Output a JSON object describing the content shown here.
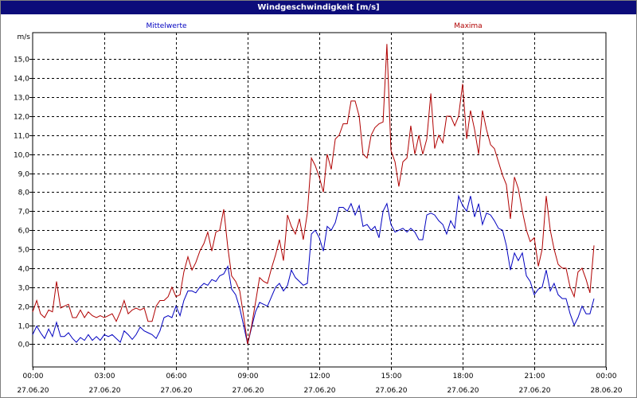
{
  "window": {
    "title": "Windgeschwindigkeit [m/s]"
  },
  "chart_data": {
    "type": "line",
    "title": "Windgeschwindigkeit [m/s]",
    "ylabel": "m/s",
    "xlabel": "",
    "ylim": [
      -1.2,
      16.4
    ],
    "xlim": [
      0,
      24
    ],
    "grid": true,
    "legend": "top",
    "y_ticks": [
      "0,0",
      "1,0",
      "2,0",
      "3,0",
      "4,0",
      "5,0",
      "6,0",
      "7,0",
      "8,0",
      "9,0",
      "10,0",
      "11,0",
      "12,0",
      "13,0",
      "14,0",
      "15,0"
    ],
    "x_ticks": [
      {
        "time": "00:00",
        "date": "27.06.20"
      },
      {
        "time": "03:00",
        "date": "27.06.20"
      },
      {
        "time": "06:00",
        "date": "27.06.20"
      },
      {
        "time": "09:00",
        "date": "27.06.20"
      },
      {
        "time": "12:00",
        "date": "27.06.20"
      },
      {
        "time": "15:00",
        "date": "27.06.20"
      },
      {
        "time": "18:00",
        "date": "27.06.20"
      },
      {
        "time": "21:00",
        "date": "27.06.20"
      },
      {
        "time": "00:00",
        "date": "28.06.20"
      }
    ],
    "series": [
      {
        "name": "Mittelwerte",
        "color": "#0000c0",
        "points": [
          [
            0.0,
            0.5
          ],
          [
            0.17,
            0.95
          ],
          [
            0.33,
            0.6
          ],
          [
            0.5,
            0.3
          ],
          [
            0.67,
            0.8
          ],
          [
            0.83,
            0.4
          ],
          [
            1.0,
            1.15
          ],
          [
            1.17,
            0.4
          ],
          [
            1.33,
            0.4
          ],
          [
            1.5,
            0.6
          ],
          [
            1.67,
            0.3
          ],
          [
            1.83,
            0.1
          ],
          [
            2.0,
            0.35
          ],
          [
            2.17,
            0.2
          ],
          [
            2.33,
            0.5
          ],
          [
            2.5,
            0.2
          ],
          [
            2.67,
            0.4
          ],
          [
            2.83,
            0.2
          ],
          [
            3.0,
            0.5
          ],
          [
            3.17,
            0.4
          ],
          [
            3.33,
            0.5
          ],
          [
            3.5,
            0.3
          ],
          [
            3.67,
            0.1
          ],
          [
            3.83,
            0.7
          ],
          [
            4.0,
            0.5
          ],
          [
            4.17,
            0.25
          ],
          [
            4.33,
            0.5
          ],
          [
            4.5,
            0.9
          ],
          [
            4.67,
            0.7
          ],
          [
            4.83,
            0.6
          ],
          [
            5.0,
            0.5
          ],
          [
            5.17,
            0.3
          ],
          [
            5.33,
            0.7
          ],
          [
            5.5,
            1.4
          ],
          [
            5.67,
            1.5
          ],
          [
            5.83,
            1.4
          ],
          [
            6.0,
            2.0
          ],
          [
            6.17,
            1.5
          ],
          [
            6.33,
            2.3
          ],
          [
            6.5,
            2.8
          ],
          [
            6.67,
            2.8
          ],
          [
            6.83,
            2.7
          ],
          [
            7.0,
            3.0
          ],
          [
            7.17,
            3.2
          ],
          [
            7.33,
            3.1
          ],
          [
            7.5,
            3.4
          ],
          [
            7.67,
            3.3
          ],
          [
            7.83,
            3.6
          ],
          [
            8.0,
            3.7
          ],
          [
            8.17,
            4.1
          ],
          [
            8.33,
            2.9
          ],
          [
            8.5,
            2.6
          ],
          [
            8.67,
            1.9
          ],
          [
            8.83,
            1.0
          ],
          [
            9.0,
            0.0
          ],
          [
            9.17,
            0.9
          ],
          [
            9.33,
            1.7
          ],
          [
            9.5,
            2.2
          ],
          [
            9.67,
            2.1
          ],
          [
            9.83,
            2.0
          ],
          [
            10.0,
            2.5
          ],
          [
            10.17,
            3.0
          ],
          [
            10.33,
            3.2
          ],
          [
            10.5,
            2.8
          ],
          [
            10.67,
            3.1
          ],
          [
            10.83,
            3.9
          ],
          [
            11.0,
            3.5
          ],
          [
            11.17,
            3.3
          ],
          [
            11.33,
            3.1
          ],
          [
            11.5,
            3.2
          ],
          [
            11.67,
            5.8
          ],
          [
            11.83,
            6.0
          ],
          [
            12.0,
            5.6
          ],
          [
            12.17,
            4.9
          ],
          [
            12.33,
            6.2
          ],
          [
            12.5,
            6.0
          ],
          [
            12.67,
            6.4
          ],
          [
            12.83,
            7.2
          ],
          [
            13.0,
            7.2
          ],
          [
            13.17,
            7.0
          ],
          [
            13.33,
            7.4
          ],
          [
            13.5,
            6.8
          ],
          [
            13.67,
            7.3
          ],
          [
            13.83,
            6.2
          ],
          [
            14.0,
            6.3
          ],
          [
            14.17,
            6.0
          ],
          [
            14.33,
            6.2
          ],
          [
            14.5,
            5.6
          ],
          [
            14.67,
            7.0
          ],
          [
            14.83,
            7.4
          ],
          [
            15.0,
            6.3
          ],
          [
            15.17,
            5.9
          ],
          [
            15.33,
            6.0
          ],
          [
            15.5,
            6.1
          ],
          [
            15.67,
            5.9
          ],
          [
            15.83,
            6.1
          ],
          [
            16.0,
            5.9
          ],
          [
            16.17,
            5.5
          ],
          [
            16.33,
            5.5
          ],
          [
            16.5,
            6.8
          ],
          [
            16.67,
            6.9
          ],
          [
            16.83,
            6.8
          ],
          [
            17.0,
            6.5
          ],
          [
            17.17,
            6.3
          ],
          [
            17.33,
            5.8
          ],
          [
            17.5,
            6.5
          ],
          [
            17.67,
            6.1
          ],
          [
            17.83,
            7.8
          ],
          [
            18.0,
            7.3
          ],
          [
            18.17,
            7.0
          ],
          [
            18.33,
            7.8
          ],
          [
            18.5,
            6.7
          ],
          [
            18.67,
            7.4
          ],
          [
            18.83,
            6.3
          ],
          [
            19.0,
            6.9
          ],
          [
            19.17,
            6.8
          ],
          [
            19.33,
            6.5
          ],
          [
            19.5,
            6.1
          ],
          [
            19.67,
            6.0
          ],
          [
            19.83,
            5.2
          ],
          [
            20.0,
            3.9
          ],
          [
            20.17,
            4.8
          ],
          [
            20.33,
            4.4
          ],
          [
            20.5,
            4.8
          ],
          [
            20.67,
            3.6
          ],
          [
            20.83,
            3.3
          ],
          [
            21.0,
            2.6
          ],
          [
            21.17,
            2.9
          ],
          [
            21.33,
            3.0
          ],
          [
            21.5,
            3.9
          ],
          [
            21.67,
            2.8
          ],
          [
            21.83,
            3.2
          ],
          [
            22.0,
            2.6
          ],
          [
            22.17,
            2.4
          ],
          [
            22.33,
            2.4
          ],
          [
            22.5,
            1.6
          ],
          [
            22.67,
            1.0
          ],
          [
            22.83,
            1.4
          ],
          [
            23.0,
            2.0
          ],
          [
            23.17,
            1.6
          ],
          [
            23.33,
            1.6
          ],
          [
            23.5,
            2.4
          ]
        ]
      },
      {
        "name": "Maxima",
        "color": "#b00000",
        "points": [
          [
            0.0,
            1.7
          ],
          [
            0.17,
            2.3
          ],
          [
            0.33,
            1.6
          ],
          [
            0.5,
            1.4
          ],
          [
            0.67,
            1.8
          ],
          [
            0.83,
            1.7
          ],
          [
            1.0,
            3.3
          ],
          [
            1.17,
            1.9
          ],
          [
            1.33,
            2.0
          ],
          [
            1.5,
            2.1
          ],
          [
            1.67,
            1.4
          ],
          [
            1.83,
            1.4
          ],
          [
            2.0,
            1.8
          ],
          [
            2.17,
            1.4
          ],
          [
            2.33,
            1.7
          ],
          [
            2.5,
            1.5
          ],
          [
            2.67,
            1.4
          ],
          [
            2.83,
            1.5
          ],
          [
            3.0,
            1.4
          ],
          [
            3.17,
            1.5
          ],
          [
            3.33,
            1.6
          ],
          [
            3.5,
            1.2
          ],
          [
            3.67,
            1.7
          ],
          [
            3.83,
            2.3
          ],
          [
            4.0,
            1.6
          ],
          [
            4.17,
            1.8
          ],
          [
            4.33,
            1.9
          ],
          [
            4.5,
            1.8
          ],
          [
            4.67,
            1.9
          ],
          [
            4.83,
            1.2
          ],
          [
            5.0,
            1.2
          ],
          [
            5.17,
            2.0
          ],
          [
            5.33,
            2.3
          ],
          [
            5.5,
            2.3
          ],
          [
            5.67,
            2.5
          ],
          [
            5.83,
            3.0
          ],
          [
            6.0,
            2.5
          ],
          [
            6.17,
            2.6
          ],
          [
            6.33,
            3.8
          ],
          [
            6.5,
            4.6
          ],
          [
            6.67,
            3.9
          ],
          [
            6.83,
            4.3
          ],
          [
            7.0,
            4.9
          ],
          [
            7.17,
            5.3
          ],
          [
            7.33,
            5.9
          ],
          [
            7.5,
            4.9
          ],
          [
            7.67,
            5.9
          ],
          [
            7.83,
            6.0
          ],
          [
            8.0,
            7.1
          ],
          [
            8.17,
            5.1
          ],
          [
            8.33,
            3.6
          ],
          [
            8.5,
            3.3
          ],
          [
            8.67,
            2.8
          ],
          [
            8.83,
            1.5
          ],
          [
            9.0,
            0.0
          ],
          [
            9.17,
            1.0
          ],
          [
            9.33,
            2.2
          ],
          [
            9.5,
            3.5
          ],
          [
            9.67,
            3.3
          ],
          [
            9.83,
            3.2
          ],
          [
            10.0,
            4.0
          ],
          [
            10.17,
            4.7
          ],
          [
            10.33,
            5.5
          ],
          [
            10.5,
            4.4
          ],
          [
            10.67,
            6.8
          ],
          [
            10.83,
            6.2
          ],
          [
            11.0,
            5.8
          ],
          [
            11.17,
            6.6
          ],
          [
            11.33,
            5.5
          ],
          [
            11.5,
            6.9
          ],
          [
            11.67,
            9.8
          ],
          [
            11.83,
            9.4
          ],
          [
            12.0,
            8.8
          ],
          [
            12.17,
            8.0
          ],
          [
            12.33,
            10.0
          ],
          [
            12.5,
            9.2
          ],
          [
            12.67,
            10.8
          ],
          [
            12.83,
            11.0
          ],
          [
            13.0,
            11.6
          ],
          [
            13.17,
            11.6
          ],
          [
            13.33,
            12.8
          ],
          [
            13.5,
            12.8
          ],
          [
            13.67,
            12.0
          ],
          [
            13.83,
            10.0
          ],
          [
            14.0,
            9.8
          ],
          [
            14.17,
            11.0
          ],
          [
            14.33,
            11.4
          ],
          [
            14.5,
            11.6
          ],
          [
            14.67,
            11.7
          ],
          [
            14.83,
            15.8
          ],
          [
            15.0,
            10.2
          ],
          [
            15.17,
            9.6
          ],
          [
            15.33,
            8.3
          ],
          [
            15.5,
            9.6
          ],
          [
            15.67,
            9.8
          ],
          [
            15.83,
            11.5
          ],
          [
            16.0,
            10.0
          ],
          [
            16.17,
            11.0
          ],
          [
            16.33,
            10.0
          ],
          [
            16.5,
            10.8
          ],
          [
            16.67,
            13.2
          ],
          [
            16.83,
            10.3
          ],
          [
            17.0,
            11.0
          ],
          [
            17.17,
            10.6
          ],
          [
            17.33,
            12.0
          ],
          [
            17.5,
            12.0
          ],
          [
            17.67,
            11.5
          ],
          [
            17.83,
            12.0
          ],
          [
            18.0,
            13.7
          ],
          [
            18.17,
            10.8
          ],
          [
            18.33,
            12.3
          ],
          [
            18.5,
            11.3
          ],
          [
            18.67,
            10.0
          ],
          [
            18.83,
            12.3
          ],
          [
            19.0,
            11.3
          ],
          [
            19.17,
            10.5
          ],
          [
            19.33,
            10.3
          ],
          [
            19.5,
            9.6
          ],
          [
            19.67,
            8.9
          ],
          [
            19.83,
            8.4
          ],
          [
            20.0,
            6.6
          ],
          [
            20.17,
            8.8
          ],
          [
            20.33,
            8.2
          ],
          [
            20.5,
            7.0
          ],
          [
            20.67,
            6.0
          ],
          [
            20.83,
            5.4
          ],
          [
            21.0,
            5.6
          ],
          [
            21.17,
            4.1
          ],
          [
            21.33,
            5.0
          ],
          [
            21.5,
            7.8
          ],
          [
            21.67,
            6.0
          ],
          [
            21.83,
            5.0
          ],
          [
            22.0,
            4.2
          ],
          [
            22.17,
            4.0
          ],
          [
            22.33,
            4.0
          ],
          [
            22.5,
            3.0
          ],
          [
            22.67,
            2.5
          ],
          [
            22.83,
            3.8
          ],
          [
            23.0,
            4.0
          ],
          [
            23.17,
            3.4
          ],
          [
            23.33,
            2.7
          ],
          [
            23.5,
            5.2
          ]
        ]
      }
    ]
  }
}
